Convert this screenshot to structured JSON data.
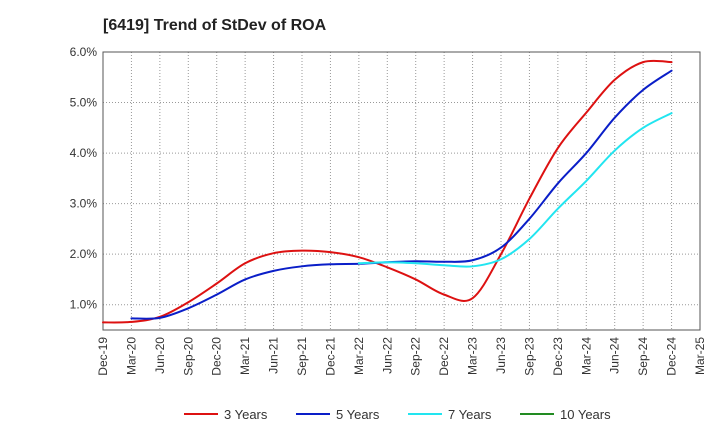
{
  "chart_data": {
    "type": "line",
    "title": "[6419]  Trend of StDev of ROA",
    "xlabel": "",
    "ylabel": "",
    "x_tick_labels": [
      "Dec-19",
      "Mar-20",
      "Jun-20",
      "Sep-20",
      "Dec-20",
      "Mar-21",
      "Jun-21",
      "Sep-21",
      "Dec-21",
      "Mar-22",
      "Jun-22",
      "Sep-22",
      "Dec-22",
      "Mar-23",
      "Jun-23",
      "Sep-23",
      "Dec-23",
      "Mar-24",
      "Jun-24",
      "Sep-24",
      "Dec-24",
      "Mar-25"
    ],
    "y_tick_labels": [
      "1.0%",
      "2.0%",
      "3.0%",
      "4.0%",
      "5.0%",
      "6.0%"
    ],
    "ylim": [
      0.5,
      6.0
    ],
    "y_unit": "%",
    "grid": true,
    "legend_position": "bottom",
    "series": [
      {
        "name": "3 Years",
        "color": "#dd1111",
        "x": [
          "Dec-19",
          "Mar-20",
          "Jun-20",
          "Sep-20",
          "Dec-20",
          "Mar-21",
          "Jun-21",
          "Sep-21",
          "Dec-21",
          "Mar-22",
          "Jun-22",
          "Sep-22",
          "Dec-22",
          "Mar-23",
          "Jun-23",
          "Sep-23",
          "Dec-23",
          "Mar-24",
          "Jun-24",
          "Sep-24",
          "Dec-24"
        ],
        "values": [
          0.65,
          0.66,
          0.76,
          1.05,
          1.42,
          1.82,
          2.02,
          2.07,
          2.04,
          1.94,
          1.74,
          1.5,
          1.2,
          1.13,
          2.0,
          3.1,
          4.1,
          4.8,
          5.45,
          5.8,
          5.8
        ]
      },
      {
        "name": "5 Years",
        "color": "#0a1ec8",
        "x": [
          "Mar-20",
          "Jun-20",
          "Sep-20",
          "Dec-20",
          "Mar-21",
          "Jun-21",
          "Sep-21",
          "Dec-21",
          "Mar-22",
          "Jun-22",
          "Sep-22",
          "Dec-22",
          "Mar-23",
          "Jun-23",
          "Sep-23",
          "Dec-23",
          "Mar-24",
          "Jun-24",
          "Sep-24",
          "Dec-24"
        ],
        "values": [
          0.73,
          0.74,
          0.93,
          1.2,
          1.5,
          1.67,
          1.76,
          1.8,
          1.81,
          1.84,
          1.86,
          1.85,
          1.88,
          2.13,
          2.7,
          3.4,
          4.0,
          4.7,
          5.25,
          5.63
        ]
      },
      {
        "name": "7 Years",
        "color": "#22e5f0",
        "x": [
          "Mar-22",
          "Jun-22",
          "Sep-22",
          "Dec-22",
          "Mar-23",
          "Jun-23",
          "Sep-23",
          "Dec-23",
          "Mar-24",
          "Jun-24",
          "Sep-24",
          "Dec-24"
        ],
        "values": [
          1.82,
          1.84,
          1.82,
          1.78,
          1.76,
          1.9,
          2.3,
          2.9,
          3.45,
          4.05,
          4.5,
          4.79
        ]
      },
      {
        "name": "10 Years",
        "color": "#228b22",
        "x": [],
        "values": []
      }
    ]
  }
}
